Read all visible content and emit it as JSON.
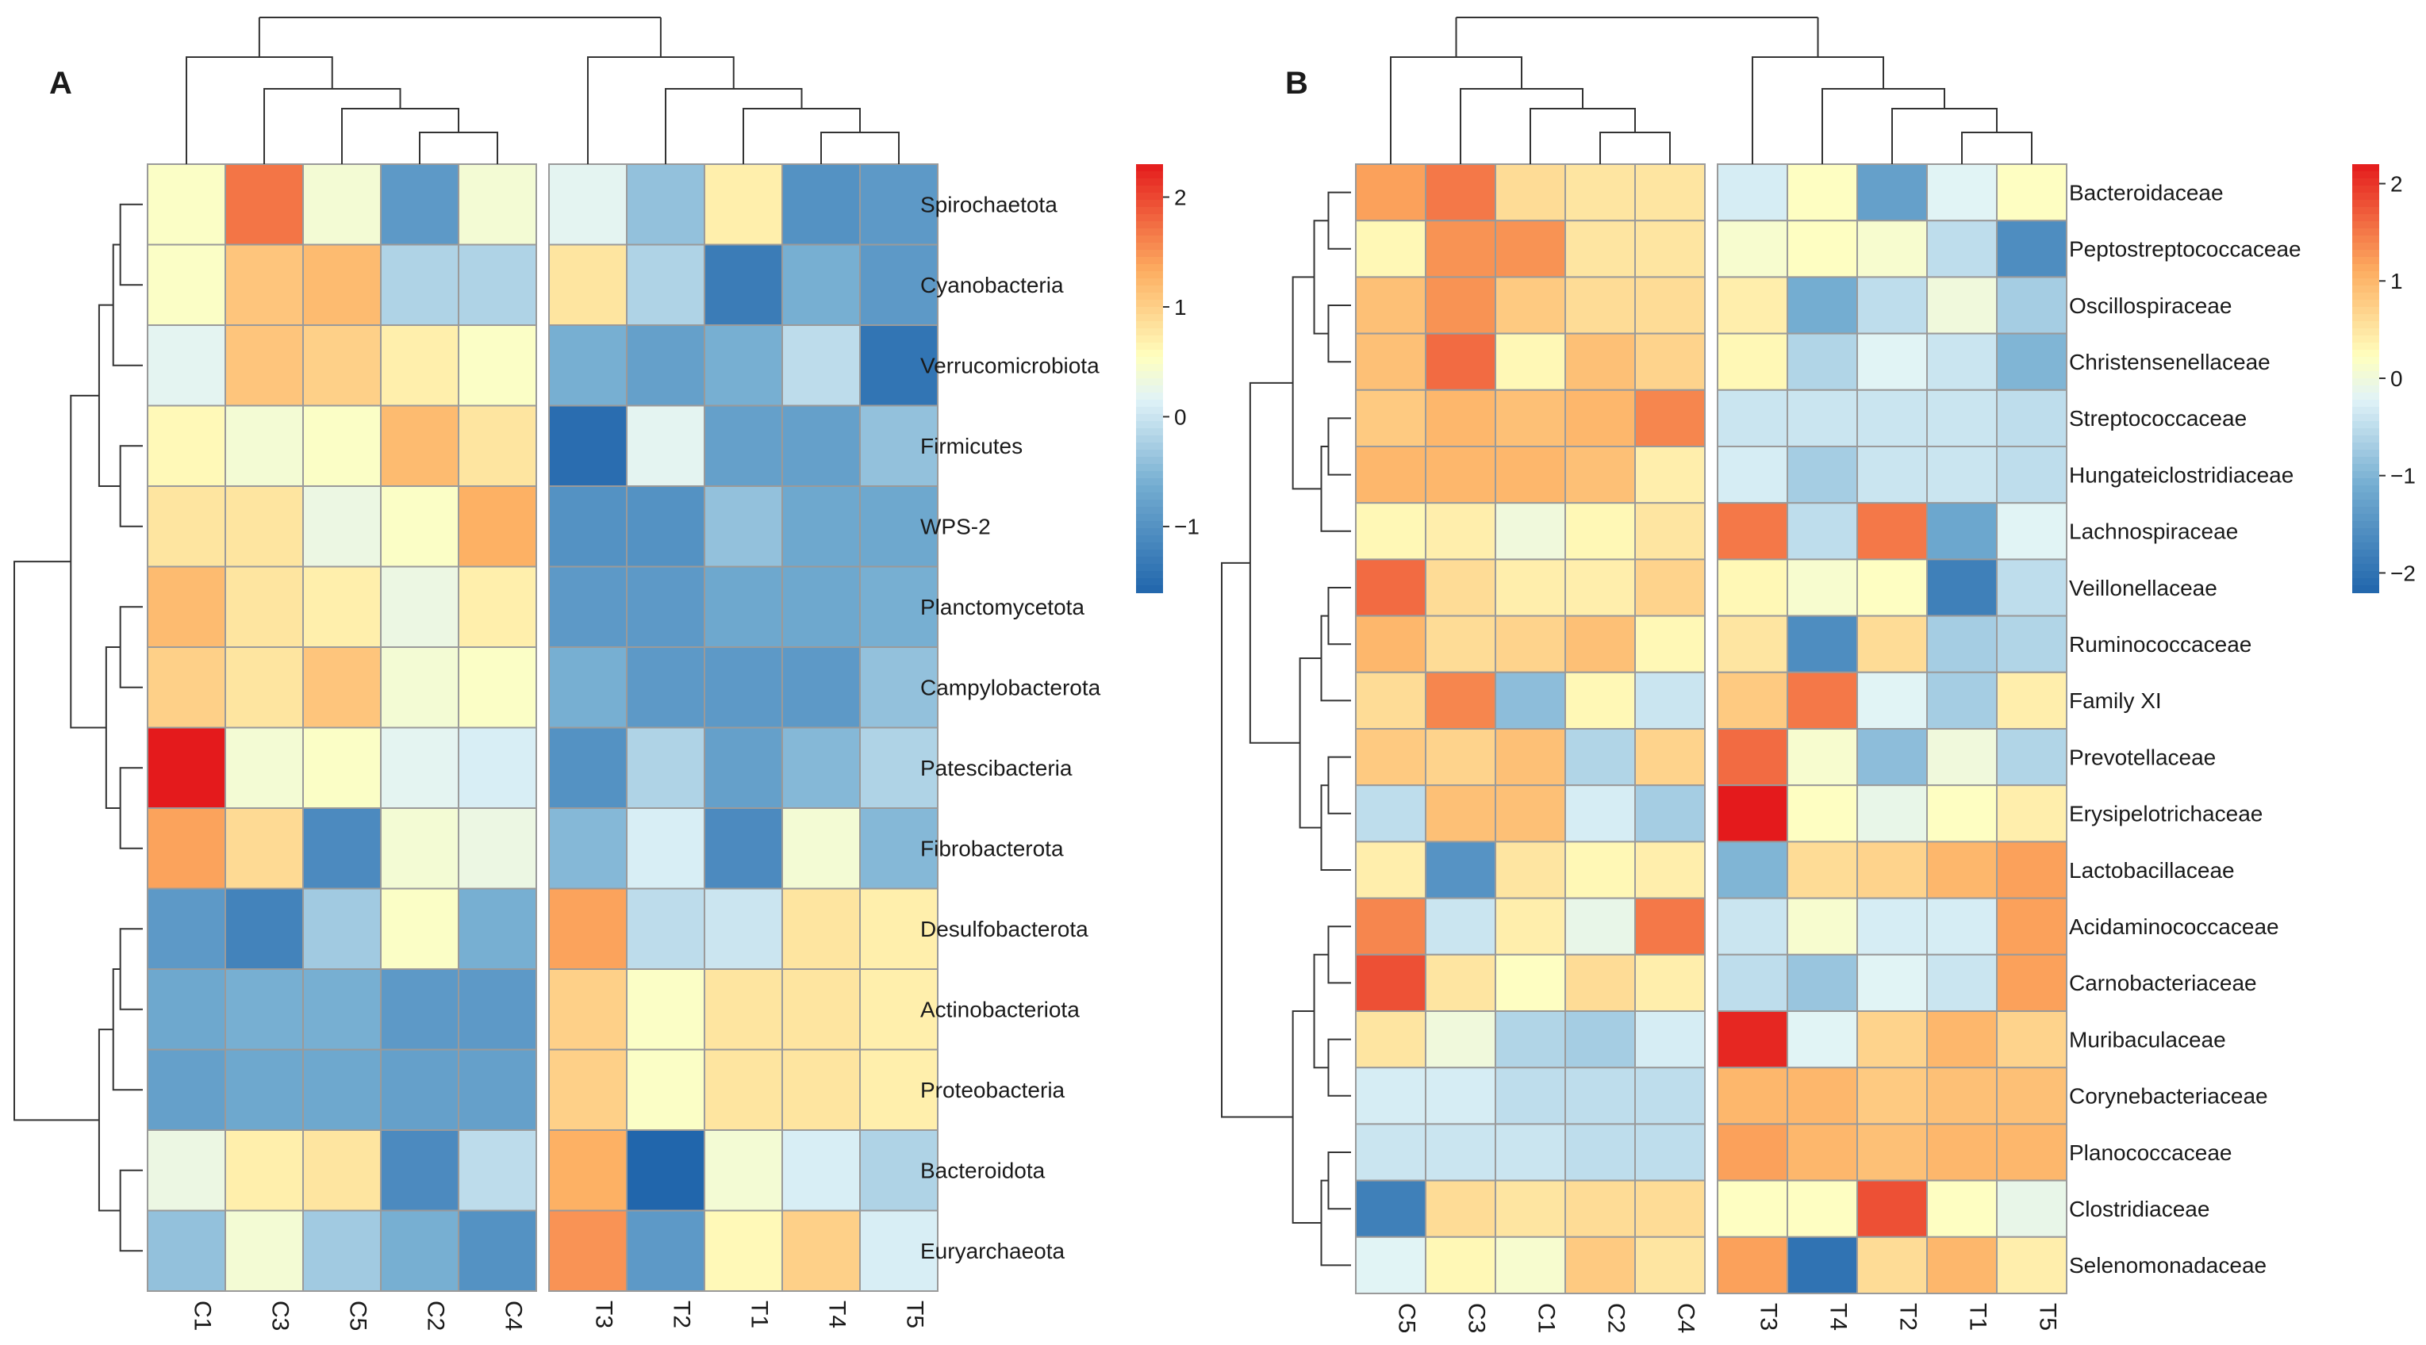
{
  "chart_data": [
    {
      "type": "heatmap",
      "panel_label": "A",
      "columns": [
        "C1",
        "C3",
        "C5",
        "C2",
        "C4",
        "T3",
        "T2",
        "T1",
        "T4",
        "T5"
      ],
      "rows": [
        "Spirochaetota",
        "Cyanobacteria",
        "Verrucomicrobiota",
        "Firmicutes",
        "WPS-2",
        "Planctomycetota",
        "Campylobacterota",
        "Patescibacteria",
        "Fibrobacterota",
        "Desulfobacterota",
        "Actinobacteriota",
        "Proteobacteria",
        "Bacteroidota",
        "Euryarchaeota"
      ],
      "values": [
        [
          0.5,
          1.7,
          0.4,
          -0.9,
          0.4,
          0.2,
          -0.4,
          0.7,
          -1.0,
          -0.9
        ],
        [
          0.5,
          1.1,
          1.2,
          -0.2,
          -0.2,
          0.8,
          -0.2,
          -1.3,
          -0.6,
          -0.9
        ],
        [
          0.2,
          1.1,
          1.0,
          0.7,
          0.5,
          -0.6,
          -0.8,
          -0.6,
          -0.1,
          -1.4
        ],
        [
          0.6,
          0.4,
          0.5,
          1.2,
          0.8,
          -1.5,
          0.2,
          -0.8,
          -0.8,
          -0.4
        ],
        [
          0.8,
          0.8,
          0.3,
          0.5,
          1.3,
          -1.0,
          -1.0,
          -0.4,
          -0.7,
          -0.7
        ],
        [
          1.2,
          0.8,
          0.7,
          0.3,
          0.7,
          -0.9,
          -0.9,
          -0.7,
          -0.7,
          -0.6
        ],
        [
          1.0,
          0.8,
          1.1,
          0.4,
          0.5,
          -0.6,
          -0.9,
          -0.9,
          -0.9,
          -0.4
        ],
        [
          2.4,
          0.4,
          0.5,
          0.2,
          0.1,
          -1.0,
          -0.2,
          -0.8,
          -0.5,
          -0.2
        ],
        [
          1.4,
          0.9,
          -1.1,
          0.4,
          0.3,
          -0.5,
          0.1,
          -1.1,
          0.4,
          -0.5
        ],
        [
          -0.9,
          -1.2,
          -0.3,
          0.5,
          -0.6,
          1.4,
          -0.1,
          0.0,
          0.8,
          0.7
        ],
        [
          -0.7,
          -0.6,
          -0.6,
          -0.9,
          -0.9,
          1.0,
          0.5,
          0.8,
          0.8,
          0.7
        ],
        [
          -0.8,
          -0.7,
          -0.7,
          -0.8,
          -0.8,
          1.0,
          0.5,
          0.8,
          0.8,
          0.7
        ],
        [
          0.3,
          0.7,
          0.8,
          -1.1,
          -0.1,
          1.3,
          -1.6,
          0.4,
          0.1,
          -0.2
        ],
        [
          -0.4,
          0.4,
          -0.3,
          -0.6,
          -1.0,
          1.5,
          -0.9,
          0.6,
          1.0,
          0.1
        ]
      ],
      "legend": {
        "min": -1.6,
        "max": 2.3,
        "ticks": [
          2,
          1,
          0,
          -1
        ]
      },
      "col_gap_after": 4
    },
    {
      "type": "heatmap",
      "panel_label": "B",
      "columns": [
        "C5",
        "C3",
        "C1",
        "C2",
        "C4",
        "T3",
        "T4",
        "T2",
        "T1",
        "T5"
      ],
      "rows": [
        "Bacteroidaceae",
        "Peptostreptococcaceae",
        "Oscillospiraceae",
        "Christensenellaceae",
        "Streptococcaceae",
        "Hungateiclostridiaceae",
        "Lachnospiraceae",
        "Veillonellaceae",
        "Ruminococcaceae",
        "Family XI",
        "Prevotellaceae",
        "Erysipelotrichaceae",
        "Lactobacillaceae",
        "Acidaminococcaceae",
        "Carnobacteriaceae",
        "Muribaculaceae",
        "Corynebacteriaceae",
        "Planococcaceae",
        "Clostridiaceae",
        "Selenomonadaceae"
      ],
      "values": [
        [
          1.2,
          1.5,
          0.6,
          0.5,
          0.5,
          -0.3,
          0.2,
          -1.3,
          -0.2,
          0.2
        ],
        [
          0.3,
          1.3,
          1.3,
          0.5,
          0.5,
          0.1,
          0.2,
          0.1,
          -0.5,
          -1.6
        ],
        [
          0.9,
          1.3,
          0.8,
          0.6,
          0.6,
          0.4,
          -1.1,
          -0.5,
          0.0,
          -0.7
        ],
        [
          0.9,
          1.6,
          0.3,
          0.9,
          0.7,
          0.3,
          -0.6,
          -0.2,
          -0.4,
          -1.0
        ],
        [
          0.8,
          1.0,
          0.9,
          1.0,
          1.4,
          -0.4,
          -0.4,
          -0.4,
          -0.4,
          -0.5
        ],
        [
          1.0,
          1.0,
          1.0,
          0.9,
          0.4,
          -0.3,
          -0.7,
          -0.4,
          -0.4,
          -0.5
        ],
        [
          0.3,
          0.4,
          0.0,
          0.3,
          0.5,
          1.5,
          -0.5,
          1.5,
          -1.2,
          -0.2
        ],
        [
          1.6,
          0.6,
          0.4,
          0.4,
          0.7,
          0.3,
          0.1,
          0.2,
          -1.8,
          -0.5
        ],
        [
          1.0,
          0.6,
          0.7,
          0.9,
          0.3,
          0.5,
          -1.6,
          0.6,
          -0.7,
          -0.6
        ],
        [
          0.6,
          1.4,
          -0.9,
          0.3,
          -0.4,
          0.8,
          1.5,
          -0.2,
          -0.7,
          0.4
        ],
        [
          0.8,
          0.7,
          0.9,
          -0.6,
          0.7,
          1.6,
          0.1,
          -0.9,
          0.0,
          -0.6
        ],
        [
          -0.5,
          0.9,
          0.9,
          -0.3,
          -0.7,
          2.3,
          0.2,
          -0.1,
          0.2,
          0.4
        ],
        [
          0.4,
          -1.5,
          0.5,
          0.3,
          0.4,
          -1.0,
          0.6,
          0.7,
          1.0,
          1.2
        ],
        [
          1.4,
          -0.4,
          0.4,
          -0.1,
          1.5,
          -0.4,
          0.1,
          -0.3,
          -0.3,
          1.2
        ],
        [
          1.8,
          0.5,
          0.2,
          0.6,
          0.4,
          -0.5,
          -0.8,
          -0.2,
          -0.4,
          1.2
        ],
        [
          0.5,
          0.0,
          -0.6,
          -0.7,
          -0.3,
          2.1,
          -0.2,
          0.7,
          1.0,
          0.7
        ],
        [
          -0.3,
          -0.3,
          -0.5,
          -0.5,
          -0.5,
          1.0,
          1.0,
          0.8,
          0.9,
          0.9
        ],
        [
          -0.4,
          -0.4,
          -0.4,
          -0.5,
          -0.5,
          1.2,
          1.0,
          0.9,
          1.0,
          1.0
        ],
        [
          -1.8,
          0.6,
          0.5,
          0.6,
          0.6,
          0.2,
          0.2,
          1.8,
          0.2,
          -0.1
        ],
        [
          -0.2,
          0.3,
          0.1,
          0.8,
          0.5,
          1.2,
          -2.0,
          0.6,
          1.0,
          0.4
        ]
      ],
      "legend": {
        "min": -2.2,
        "max": 2.2,
        "ticks": [
          2,
          1,
          0,
          -1,
          -2
        ]
      },
      "col_gap_after": 4
    }
  ]
}
